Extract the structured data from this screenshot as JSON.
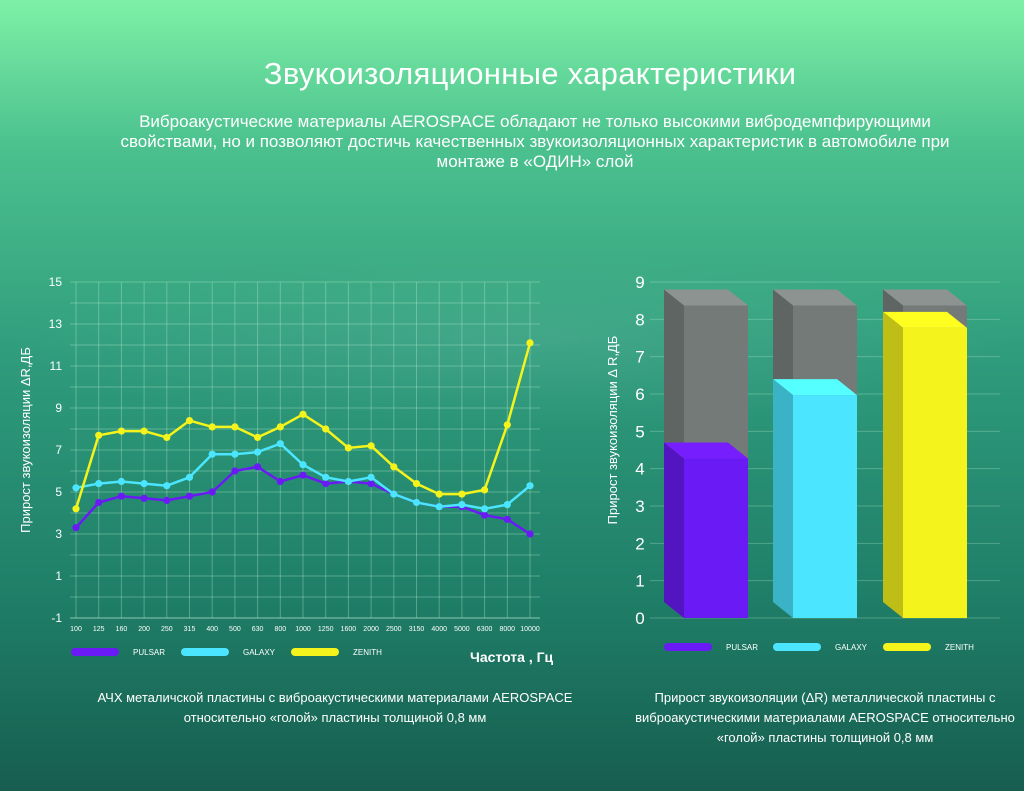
{
  "header": {
    "title": "Звукоизоляционные характеристики",
    "subtitle": "Виброакустические материалы AEROSPACE обладают не только высокими вибродемпфирующими свойствами, но и позволяют достичь качественных звукоизоляционных характеристик в автомобиле при монтаже в «ОДИН» слой"
  },
  "chart_data": [
    {
      "type": "line",
      "ylabel": "Прирост звукоизоляции    ΔR,ДБ",
      "xlabel": "Частота ,  Гц",
      "ylim": [
        -1,
        15
      ],
      "yticks": [
        -1,
        1,
        3,
        5,
        7,
        9,
        11,
        13,
        15
      ],
      "categories": [
        "100",
        "125",
        "160",
        "200",
        "250",
        "315",
        "400",
        "500",
        "630",
        "800",
        "1000",
        "1250",
        "1600",
        "2000",
        "2500",
        "3150",
        "4000",
        "5000",
        "6300",
        "8000",
        "10000"
      ],
      "grid": true,
      "legend_position": "bottom",
      "series": [
        {
          "name": "PULSAR",
          "color": "#6a1bf5",
          "values": [
            3.3,
            4.5,
            4.8,
            4.7,
            4.6,
            4.8,
            5.0,
            6.0,
            6.2,
            5.5,
            5.8,
            5.4,
            5.5,
            5.4,
            4.9,
            4.5,
            4.3,
            4.3,
            3.9,
            3.7,
            3.0
          ]
        },
        {
          "name": "GALAXY",
          "color": "#4ce5ff",
          "values": [
            5.2,
            5.4,
            5.5,
            5.4,
            5.3,
            5.7,
            6.8,
            6.8,
            6.9,
            7.3,
            6.3,
            5.7,
            5.5,
            5.7,
            4.9,
            4.5,
            4.3,
            4.4,
            4.2,
            4.4,
            5.3
          ]
        },
        {
          "name": "ZENITH",
          "color": "#f4f41c",
          "values": [
            4.2,
            7.7,
            7.9,
            7.9,
            7.6,
            8.4,
            8.1,
            8.1,
            7.6,
            8.1,
            8.7,
            8.0,
            7.1,
            7.2,
            6.2,
            5.4,
            4.9,
            4.9,
            5.1,
            8.2,
            12.1
          ]
        }
      ],
      "caption": "АЧХ металичской пластины с виброакустическими материалами AEROSPACE относительно «голой» пластины толщиной 0,8 мм"
    },
    {
      "type": "bar",
      "ylabel": "Прирост звукоизоляции  Δ  R,ДБ",
      "ylim": [
        0,
        9
      ],
      "yticks": [
        0,
        1,
        2,
        3,
        4,
        5,
        6,
        7,
        8,
        9
      ],
      "categories": [
        "PULSAR",
        "GALAXY",
        "ZENITH"
      ],
      "series": [
        {
          "values": [
            4.7,
            6.4,
            8.2
          ],
          "colors": [
            "#6a1bf5",
            "#4ce5ff",
            "#f4f41c"
          ]
        }
      ],
      "background_bar_value": 8.8,
      "legend_position": "bottom",
      "caption": "Прирост звукоизоляции (ΔR) металлической пластины с виброакустическими материалами AEROSPACE относительно «голой» пластины толщиной 0,8 мм"
    }
  ]
}
